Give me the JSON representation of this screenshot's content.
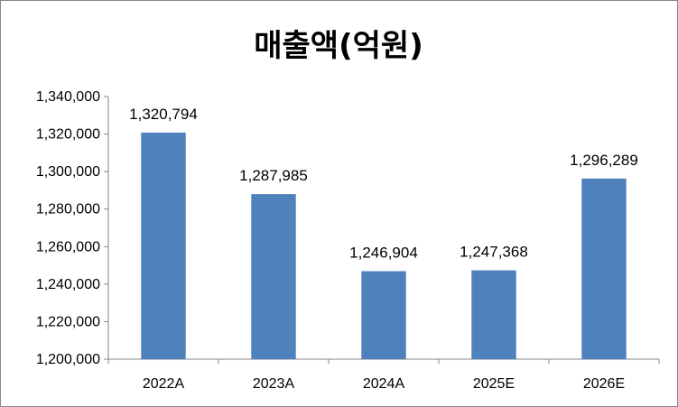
{
  "chart_data": {
    "type": "bar",
    "title": "매출액(억원)",
    "xlabel": "",
    "ylabel": "",
    "categories": [
      "2022A",
      "2023A",
      "2024A",
      "2025E",
      "2026E"
    ],
    "values": [
      1320794,
      1287985,
      1246904,
      1247368,
      1296289
    ],
    "value_labels": [
      "1,320,794",
      "1,287,985",
      "1,246,904",
      "1,247,368",
      "1,296,289"
    ],
    "ylim": [
      1200000,
      1340000
    ],
    "yticks": [
      1200000,
      1220000,
      1240000,
      1260000,
      1280000,
      1300000,
      1320000,
      1340000
    ],
    "ytick_labels": [
      "1,200,000",
      "1,220,000",
      "1,240,000",
      "1,260,000",
      "1,280,000",
      "1,300,000",
      "1,320,000",
      "1,340,000"
    ],
    "grid": false,
    "legend": "none",
    "colors": {
      "bar": "#4F81BD",
      "axis": "#868686",
      "text": "#000000"
    }
  }
}
